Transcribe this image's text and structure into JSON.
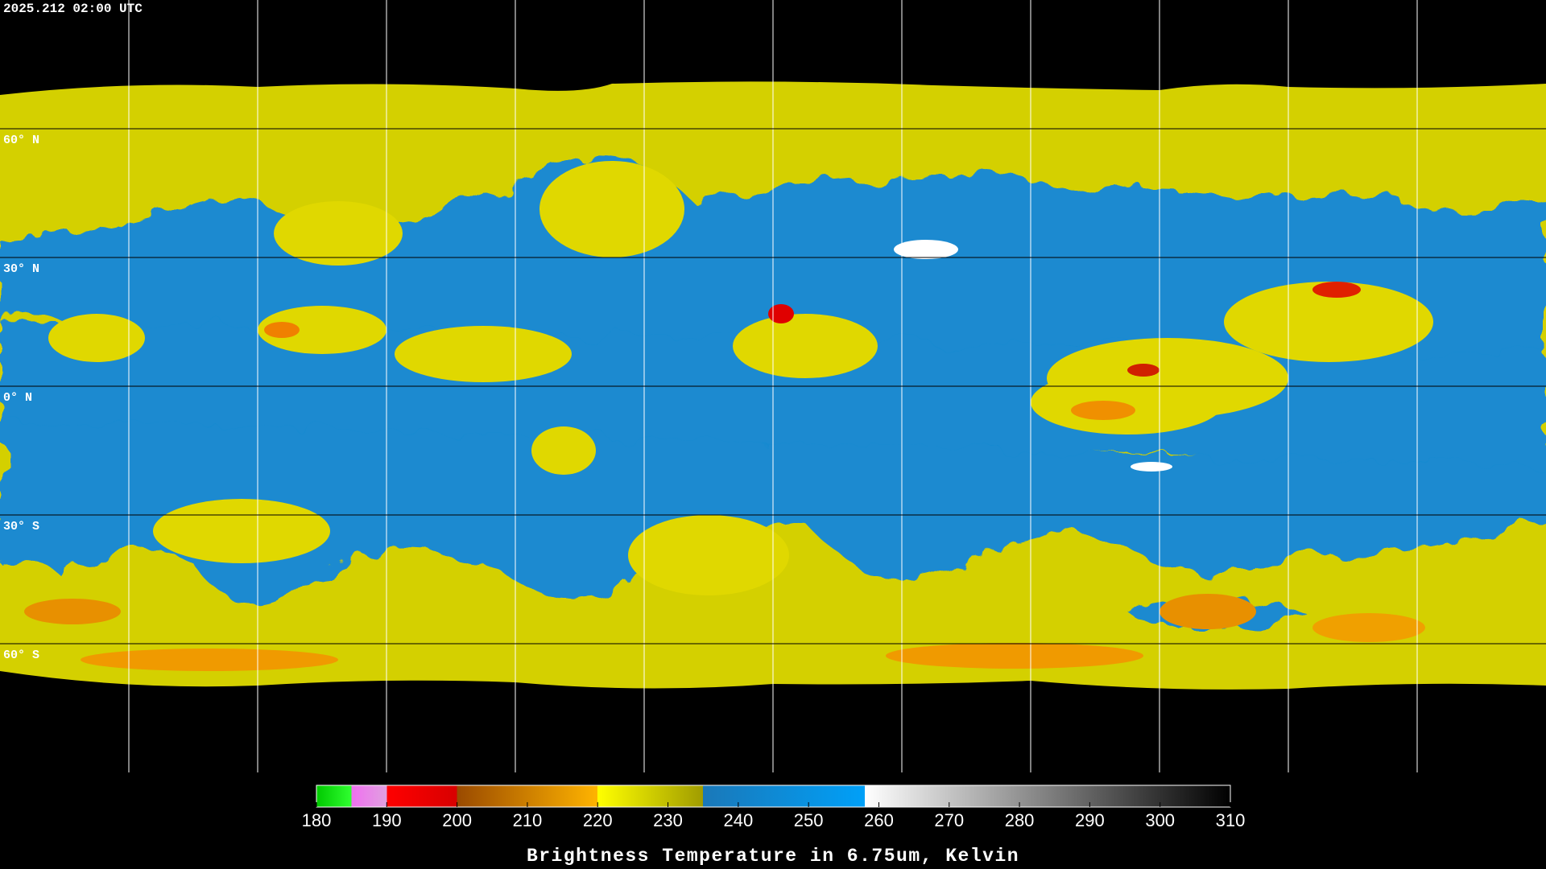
{
  "timestamp": "2025.212 02:00 UTC",
  "map": {
    "xlim": [
      -180,
      180
    ],
    "ylim": [
      -90,
      90
    ],
    "longitude_lines": [
      -150,
      -120,
      -90,
      -60,
      -30,
      0,
      30,
      60,
      90,
      120,
      150
    ],
    "latitude_lines": [
      {
        "value": 60,
        "label": "60° N"
      },
      {
        "value": 30,
        "label": "30° N"
      },
      {
        "value": 0,
        "label": "0° N"
      },
      {
        "value": -30,
        "label": "30° S"
      },
      {
        "value": -60,
        "label": "60° S"
      }
    ]
  },
  "colorbar": {
    "title": "Brightness Temperature in 6.75um, Kelvin",
    "range": [
      180,
      310
    ],
    "ticks": [
      180,
      190,
      200,
      210,
      220,
      230,
      240,
      250,
      260,
      270,
      280,
      290,
      300,
      310
    ],
    "color_stops": [
      {
        "value": 180,
        "color": "#00c800"
      },
      {
        "value": 185,
        "color": "#30ff30"
      },
      {
        "value": 185,
        "color": "#f070f0"
      },
      {
        "value": 190,
        "color": "#e0a0e0"
      },
      {
        "value": 190,
        "color": "#ff0000"
      },
      {
        "value": 200,
        "color": "#d80000"
      },
      {
        "value": 200,
        "color": "#9a4a00"
      },
      {
        "value": 220,
        "color": "#ffb400"
      },
      {
        "value": 220,
        "color": "#ffff00"
      },
      {
        "value": 235,
        "color": "#a09c00"
      },
      {
        "value": 235,
        "color": "#1a78b8"
      },
      {
        "value": 258,
        "color": "#00a0f8"
      },
      {
        "value": 258,
        "color": "#ffffff"
      },
      {
        "value": 310,
        "color": "#000000"
      }
    ]
  }
}
